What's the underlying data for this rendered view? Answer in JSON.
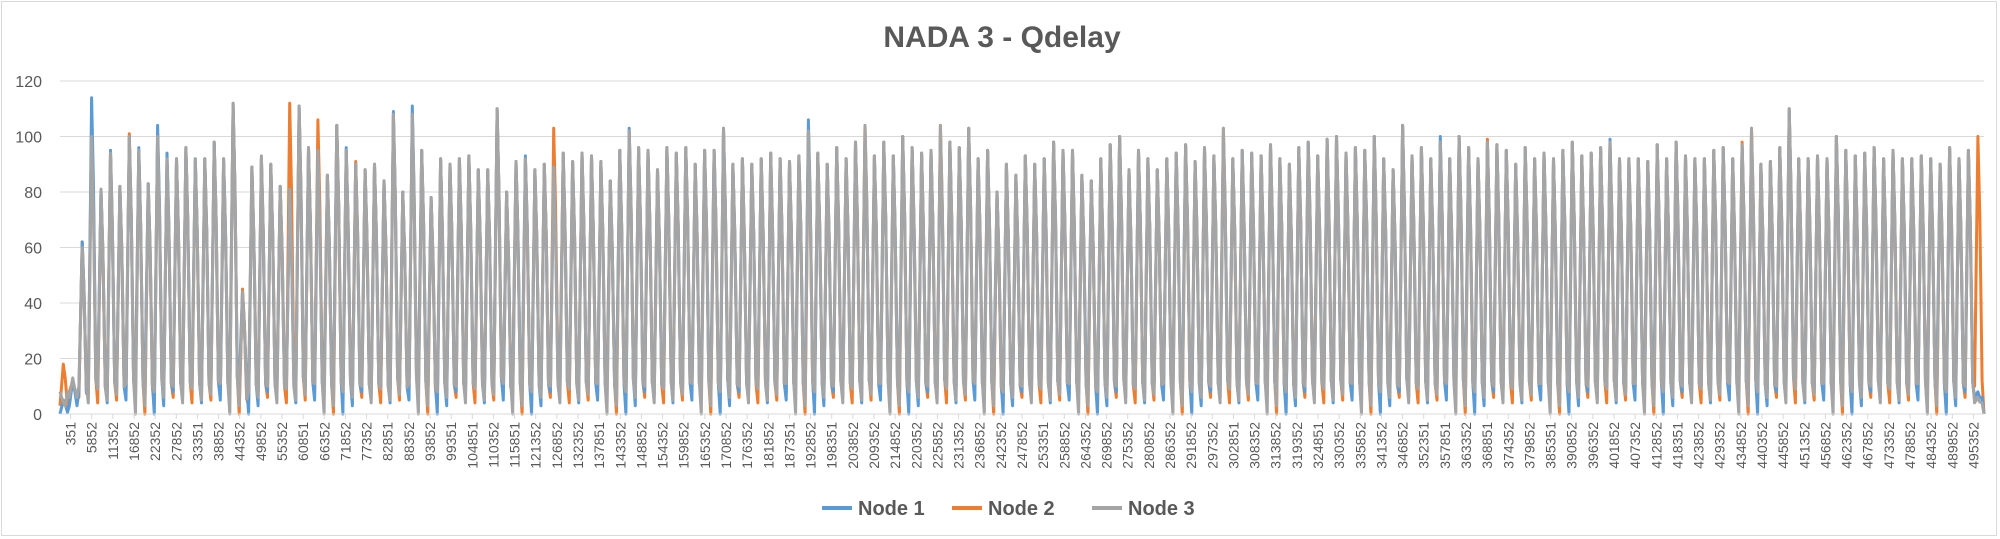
{
  "chart_data": {
    "type": "line",
    "title": "NADA 3 - Qdelay",
    "xlabel": "",
    "ylabel": "",
    "ylim": [
      0,
      120
    ],
    "yticks": [
      0,
      20,
      40,
      60,
      80,
      100,
      120
    ],
    "grid": true,
    "legend_position": "bottom",
    "x_tick_labels": [
      "351",
      "5852",
      "11352",
      "16852",
      "22352",
      "27852",
      "33351",
      "38852",
      "44352",
      "49852",
      "55352",
      "60851",
      "66352",
      "71852",
      "77352",
      "82851",
      "88352",
      "93852",
      "99351",
      "104851",
      "110352",
      "115851",
      "121352",
      "126852",
      "132352",
      "137851",
      "143352",
      "148852",
      "154352",
      "159852",
      "165352",
      "170852",
      "176352",
      "181852",
      "187351",
      "192852",
      "198351",
      "203852",
      "209352",
      "214852",
      "220352",
      "225852",
      "231352",
      "236852",
      "242352",
      "247852",
      "253351",
      "258852",
      "264352",
      "269852",
      "275352",
      "280852",
      "286352",
      "291852",
      "297352",
      "302851",
      "308352",
      "313852",
      "319352",
      "324851",
      "330352",
      "335852",
      "341352",
      "346852",
      "352351",
      "357851",
      "363352",
      "368851",
      "374352",
      "379852",
      "385351",
      "390852",
      "396352",
      "401852",
      "407352",
      "412852",
      "418351",
      "423852",
      "429352",
      "434852",
      "440352",
      "445852",
      "451352",
      "456852",
      "462352",
      "467852",
      "473352",
      "478852",
      "484352",
      "489852",
      "495352"
    ],
    "cycle_peaks": [
      9,
      13,
      62,
      110,
      81,
      95,
      82,
      100,
      95,
      83,
      103,
      92,
      92,
      96,
      92,
      92,
      98,
      92,
      111,
      44,
      89,
      93,
      90,
      82,
      81,
      111,
      96,
      95,
      86,
      104,
      95,
      90,
      88,
      90,
      84,
      108,
      80,
      108,
      95,
      78,
      92,
      90,
      92,
      93,
      88,
      88,
      110,
      80,
      91,
      92,
      88,
      90,
      89,
      94,
      91,
      94,
      93,
      91,
      84,
      95,
      102,
      96,
      95,
      88,
      96,
      94,
      96,
      90,
      95,
      95,
      102,
      90,
      92,
      90,
      92,
      94,
      92,
      91,
      93,
      102,
      94,
      90,
      96,
      92,
      98,
      104,
      93,
      98,
      93,
      100,
      96,
      94,
      95,
      104,
      98,
      96,
      103,
      92,
      95,
      80,
      90,
      86,
      93,
      90,
      92,
      98,
      95,
      95,
      86,
      84,
      92,
      97,
      100,
      88,
      95,
      92,
      88,
      92,
      94,
      97,
      91,
      96,
      93,
      103,
      92,
      95,
      94,
      93,
      97,
      92,
      90,
      96,
      98,
      93,
      99,
      100,
      94,
      96,
      95,
      100,
      92,
      88,
      104,
      93,
      96,
      92,
      98,
      92,
      100,
      96,
      92,
      98,
      97,
      95,
      90,
      96,
      92,
      94,
      92,
      95,
      98,
      93,
      94,
      96,
      98,
      92,
      92,
      92,
      91,
      97,
      92,
      98,
      93,
      92,
      92,
      95,
      96,
      92,
      97,
      103,
      90,
      91,
      96,
      110,
      92,
      92,
      93,
      92,
      100,
      95,
      93,
      94,
      96,
      92,
      95,
      92,
      92,
      93,
      92,
      90,
      96,
      92,
      95,
      100
    ],
    "series": [
      {
        "name": "Node 1",
        "color": "#5b9bd5",
        "values": [
          5,
          12,
          62,
          114,
          81,
          95,
          82,
          100,
          96,
          83,
          104,
          94,
          92,
          96,
          92,
          92,
          98,
          92,
          112,
          44,
          89,
          92,
          90,
          82,
          81,
          111,
          96,
          95,
          86,
          104,
          96,
          90,
          88,
          90,
          84,
          109,
          80,
          111,
          95,
          78,
          92,
          90,
          92,
          93,
          88,
          88,
          110,
          80,
          91,
          93,
          88,
          90,
          89,
          94,
          91,
          94,
          93,
          91,
          84,
          95,
          103,
          96,
          95,
          88,
          96,
          94,
          96,
          90,
          95,
          95,
          103,
          90,
          92,
          90,
          92,
          94,
          92,
          91,
          93,
          106,
          94,
          90,
          96,
          92,
          98,
          101,
          93,
          98,
          93,
          100,
          96,
          94,
          95,
          100,
          98,
          96,
          103,
          92,
          95,
          80,
          90,
          86,
          93,
          90,
          92,
          98,
          95,
          95,
          86,
          84,
          92,
          97,
          100,
          88,
          95,
          92,
          88,
          92,
          94,
          97,
          91,
          96,
          93,
          100,
          92,
          95,
          94,
          93,
          97,
          92,
          90,
          96,
          98,
          93,
          99,
          100,
          94,
          96,
          95,
          100,
          92,
          88,
          104,
          93,
          96,
          92,
          100,
          92,
          100,
          96,
          92,
          98,
          97,
          95,
          90,
          96,
          92,
          94,
          92,
          95,
          98,
          93,
          94,
          96,
          99,
          92,
          92,
          92,
          91,
          97,
          92,
          98,
          93,
          92,
          92,
          95,
          96,
          92,
          97,
          100,
          90,
          91,
          96,
          110,
          92,
          92,
          93,
          92,
          100,
          95,
          93,
          94,
          96,
          92,
          95,
          92,
          92,
          93,
          92,
          90,
          96,
          92,
          95,
          8
        ]
      },
      {
        "name": "Node 2",
        "color": "#ed7d31",
        "values": [
          18,
          12,
          62,
          106,
          80,
          95,
          82,
          101,
          95,
          83,
          101,
          92,
          92,
          96,
          91,
          92,
          98,
          91,
          111,
          45,
          89,
          92,
          90,
          82,
          112,
          110,
          96,
          106,
          86,
          104,
          95,
          91,
          88,
          90,
          84,
          108,
          80,
          108,
          95,
          78,
          92,
          90,
          92,
          93,
          88,
          88,
          110,
          80,
          91,
          92,
          88,
          90,
          103,
          94,
          91,
          94,
          93,
          91,
          84,
          95,
          102,
          96,
          95,
          88,
          96,
          94,
          96,
          90,
          95,
          95,
          102,
          90,
          92,
          90,
          92,
          94,
          92,
          91,
          93,
          102,
          94,
          90,
          96,
          92,
          98,
          104,
          93,
          98,
          93,
          100,
          96,
          94,
          95,
          104,
          98,
          96,
          103,
          92,
          95,
          80,
          90,
          86,
          93,
          90,
          92,
          98,
          95,
          95,
          86,
          84,
          92,
          97,
          100,
          88,
          95,
          92,
          88,
          92,
          94,
          97,
          91,
          96,
          93,
          103,
          92,
          95,
          94,
          93,
          97,
          92,
          90,
          96,
          98,
          93,
          99,
          100,
          94,
          96,
          95,
          100,
          92,
          88,
          104,
          93,
          96,
          92,
          98,
          92,
          100,
          96,
          92,
          99,
          97,
          95,
          90,
          96,
          92,
          94,
          92,
          95,
          98,
          93,
          94,
          96,
          98,
          92,
          92,
          92,
          91,
          97,
          92,
          98,
          93,
          92,
          92,
          95,
          96,
          92,
          98,
          103,
          90,
          91,
          96,
          110,
          92,
          92,
          93,
          92,
          100,
          95,
          93,
          94,
          96,
          92,
          95,
          92,
          92,
          93,
          92,
          90,
          96,
          92,
          95,
          100
        ]
      },
      {
        "name": "Node 3",
        "color": "#a5a5a5",
        "values": [
          4,
          13,
          60,
          100,
          81,
          94,
          82,
          100,
          95,
          83,
          100,
          92,
          92,
          96,
          92,
          92,
          98,
          92,
          112,
          44,
          89,
          93,
          90,
          82,
          81,
          111,
          96,
          95,
          86,
          104,
          95,
          90,
          88,
          90,
          84,
          108,
          80,
          108,
          95,
          78,
          92,
          90,
          92,
          93,
          88,
          88,
          110,
          80,
          91,
          92,
          88,
          90,
          89,
          94,
          91,
          94,
          93,
          91,
          84,
          95,
          102,
          96,
          95,
          88,
          96,
          94,
          96,
          90,
          95,
          95,
          103,
          90,
          92,
          90,
          92,
          94,
          92,
          91,
          93,
          102,
          94,
          90,
          96,
          92,
          98,
          104,
          93,
          98,
          93,
          100,
          96,
          94,
          95,
          104,
          98,
          96,
          103,
          92,
          95,
          80,
          90,
          86,
          93,
          90,
          92,
          98,
          95,
          95,
          86,
          84,
          92,
          97,
          100,
          88,
          95,
          92,
          88,
          92,
          94,
          97,
          91,
          96,
          93,
          103,
          92,
          95,
          94,
          93,
          97,
          92,
          90,
          96,
          98,
          93,
          99,
          100,
          94,
          96,
          95,
          100,
          92,
          88,
          104,
          93,
          96,
          92,
          98,
          92,
          100,
          96,
          92,
          98,
          97,
          95,
          90,
          96,
          92,
          94,
          92,
          95,
          98,
          93,
          94,
          96,
          98,
          92,
          92,
          92,
          91,
          97,
          92,
          98,
          93,
          92,
          92,
          95,
          96,
          92,
          97,
          103,
          90,
          91,
          96,
          110,
          92,
          92,
          93,
          92,
          100,
          95,
          93,
          94,
          96,
          92,
          95,
          92,
          92,
          93,
          92,
          90,
          96,
          92,
          95,
          6
        ]
      }
    ]
  }
}
